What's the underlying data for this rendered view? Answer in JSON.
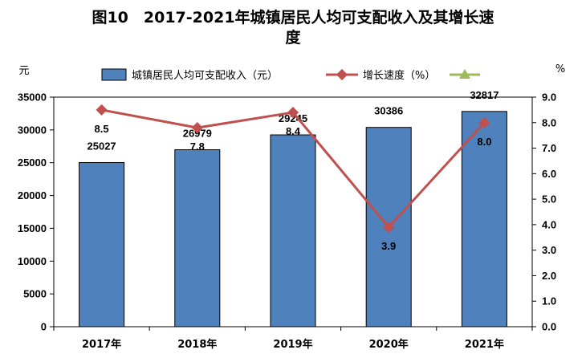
{
  "title_line1": "图10　2017-2021年城镇居民人均可支配收入及其增长速",
  "title_line2": "度",
  "y_left_unit": "元",
  "y_right_unit": "%",
  "colors": {
    "bar": "#4f81bd",
    "bar_stroke": "#000000",
    "line": "#c0504d",
    "extra_legend": "#9bbb59"
  },
  "chart_data": {
    "type": "bar",
    "categories": [
      "2017年",
      "2018年",
      "2019年",
      "2020年",
      "2021年"
    ],
    "series": [
      {
        "name": "城镇居民人均可支配收入（元）",
        "type": "bar",
        "axis": "left",
        "values": [
          25027,
          26979,
          29245,
          30386,
          32817
        ]
      },
      {
        "name": "增长速度（%）",
        "type": "line",
        "axis": "right",
        "marker": "diamond",
        "values": [
          8.5,
          7.8,
          8.4,
          3.9,
          8.0
        ]
      }
    ],
    "legend_extra_marker": "triangle",
    "y_left": {
      "min": 0,
      "max": 35000,
      "step": 5000,
      "ticks": [
        "0",
        "5000",
        "10000",
        "15000",
        "20000",
        "25000",
        "30000",
        "35000"
      ]
    },
    "y_right": {
      "min": 0,
      "max": 9,
      "step": 1,
      "ticks": [
        "0.0",
        "1.0",
        "2.0",
        "3.0",
        "4.0",
        "5.0",
        "6.0",
        "7.0",
        "8.0",
        "9.0"
      ]
    },
    "bar_labels": [
      "25027",
      "26979",
      "29245",
      "30386",
      "32817"
    ],
    "line_labels": [
      "8.5",
      "7.8",
      "8.4",
      "3.9",
      "8.0"
    ],
    "legend_position": "top",
    "grid": false
  }
}
